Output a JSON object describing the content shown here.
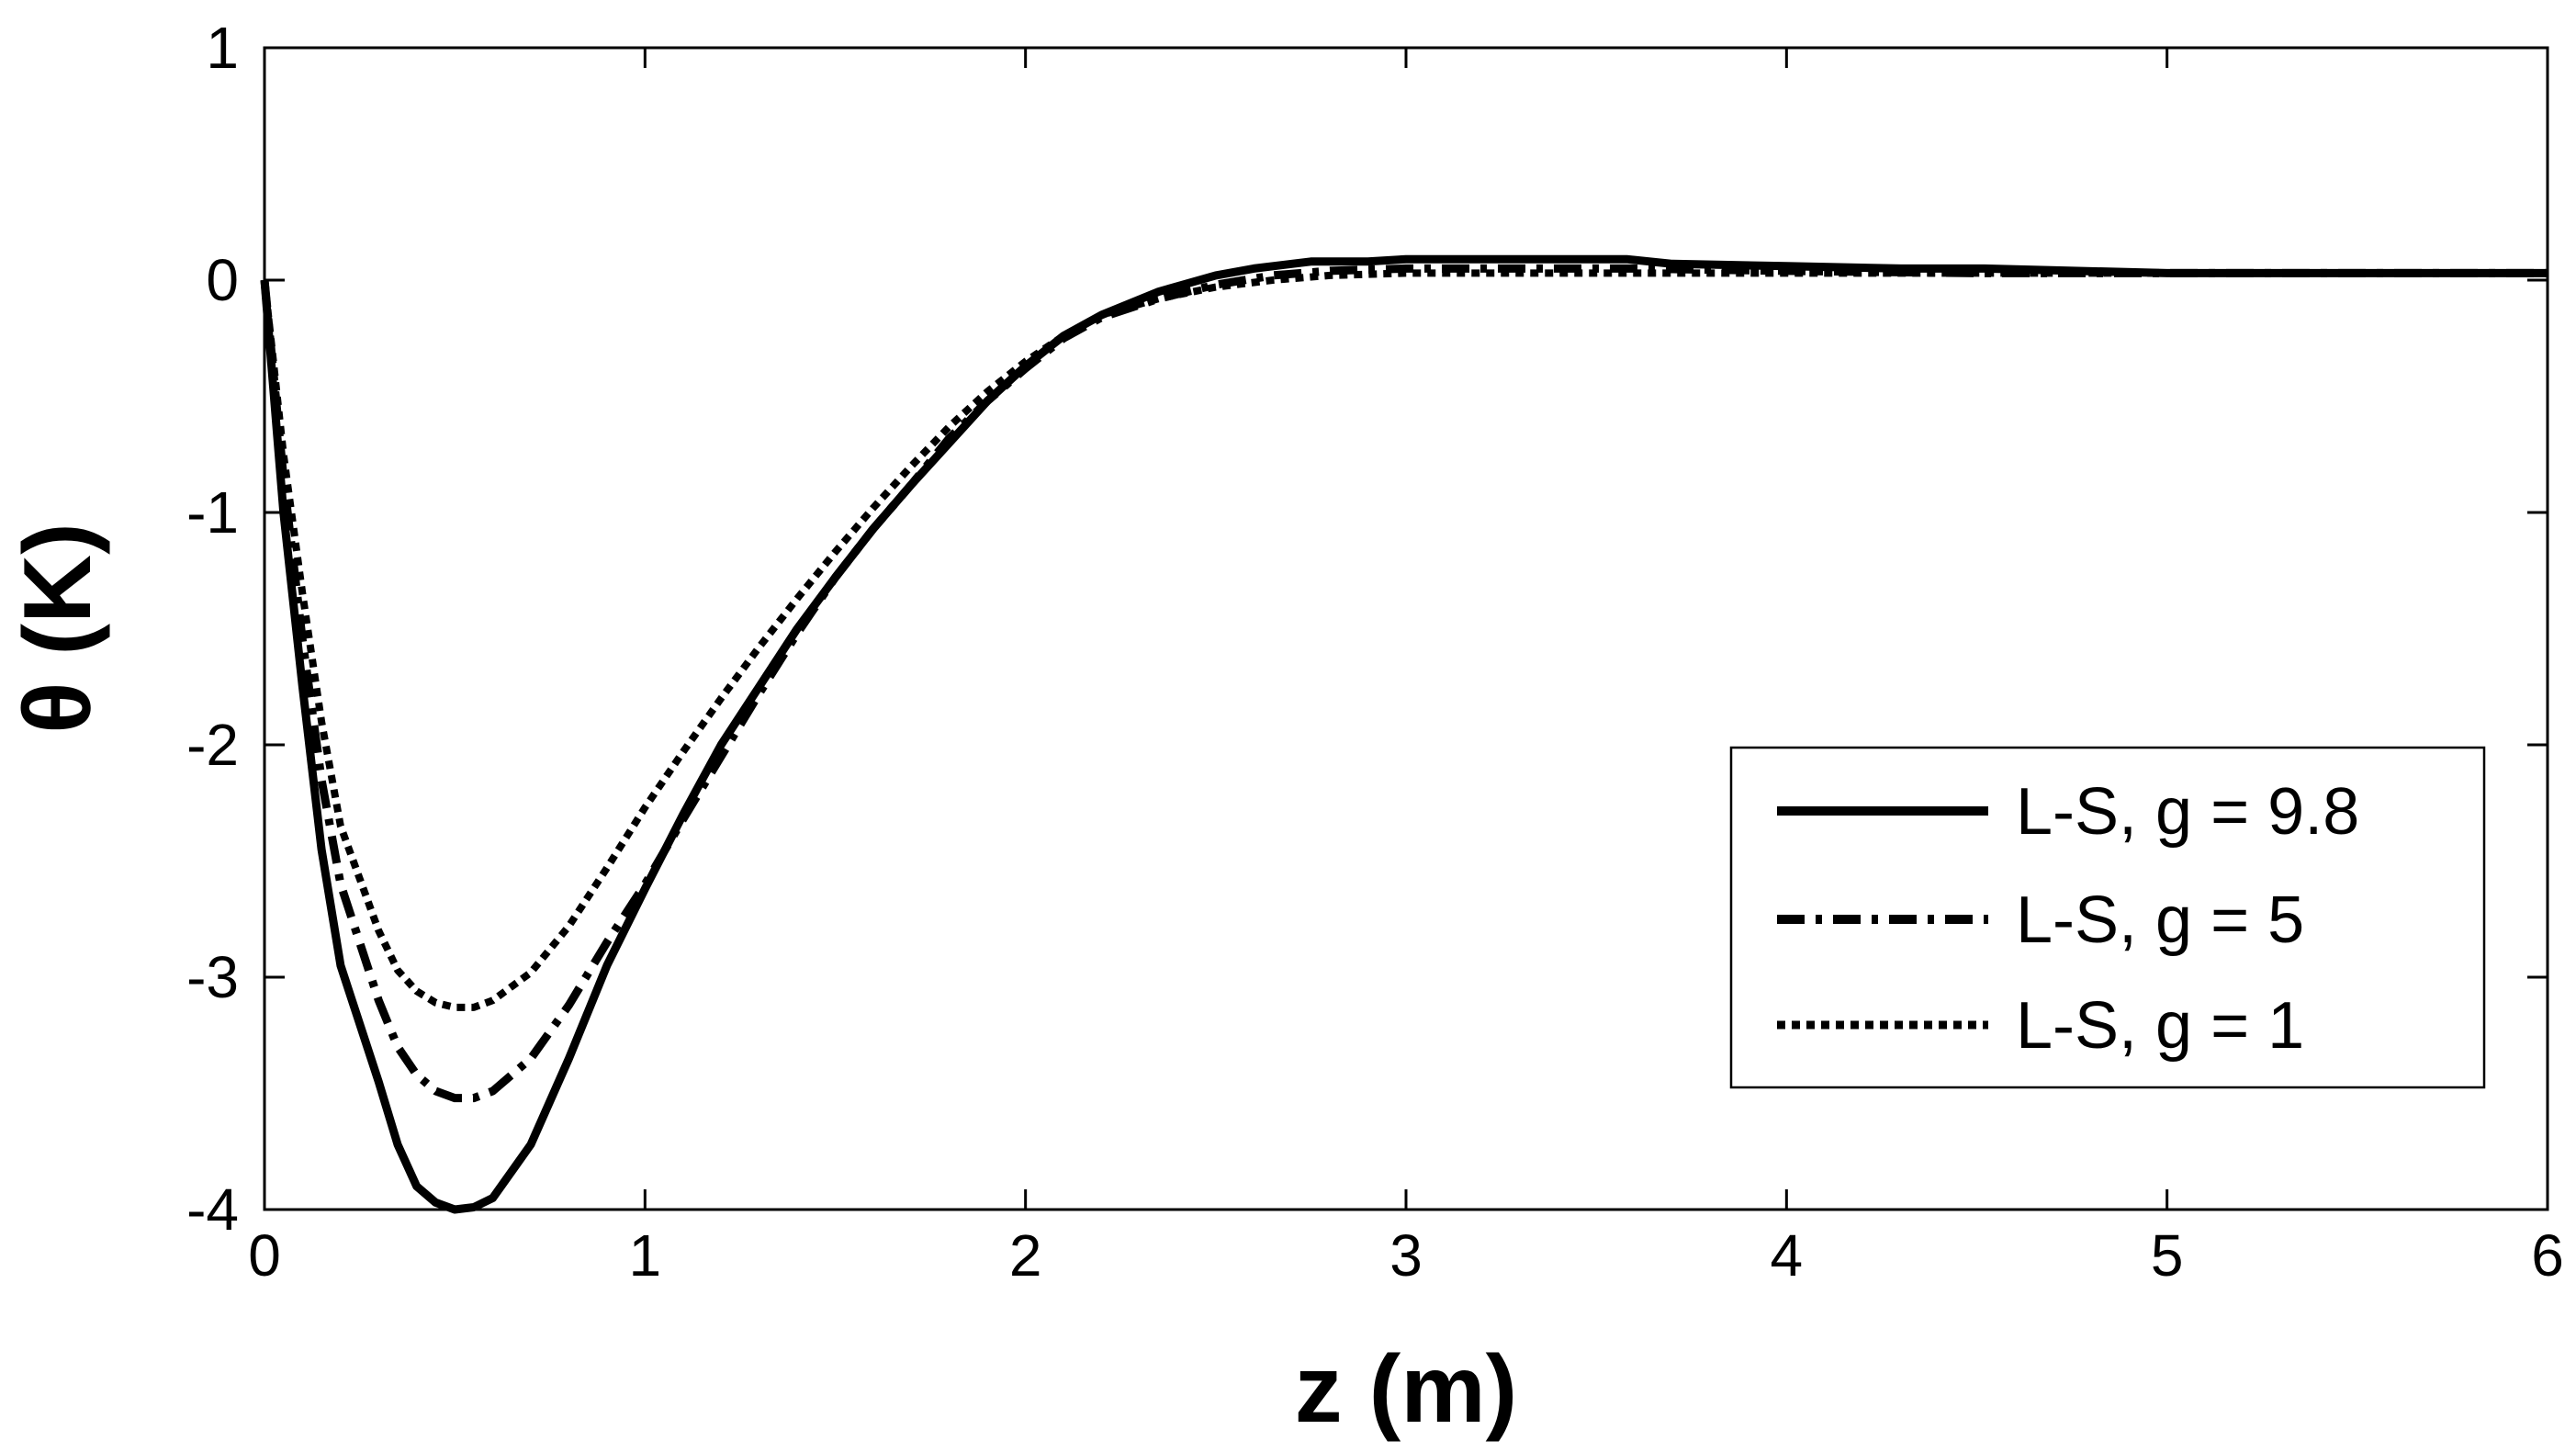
{
  "chart_data": {
    "type": "line",
    "title": "",
    "xlabel": "z (m)",
    "ylabel": "θ (K)",
    "xlim": [
      0,
      6
    ],
    "ylim": [
      -4,
      1
    ],
    "xticks": [
      "0",
      "1",
      "2",
      "3",
      "4",
      "5",
      "6"
    ],
    "yticks": [
      "-4",
      "-3",
      "-2",
      "-1",
      "0",
      "1"
    ],
    "grid": false,
    "legend_position": "center-right",
    "series": [
      {
        "name": "L-S, g = 9.8",
        "style": "solid",
        "x": [
          0,
          0.05,
          0.1,
          0.15,
          0.2,
          0.3,
          0.35,
          0.4,
          0.45,
          0.5,
          0.55,
          0.6,
          0.7,
          0.8,
          0.9,
          1.0,
          1.1,
          1.2,
          1.3,
          1.4,
          1.5,
          1.6,
          1.7,
          1.8,
          1.9,
          2.0,
          2.1,
          2.2,
          2.35,
          2.5,
          2.6,
          2.7,
          2.75,
          2.9,
          3.0,
          3.2,
          3.4,
          3.58,
          3.7,
          4.0,
          4.3,
          4.52,
          5.0,
          5.5,
          6.0
        ],
        "y": [
          0,
          -1.0,
          -1.75,
          -2.45,
          -2.95,
          -3.45,
          -3.72,
          -3.9,
          -3.97,
          -4.0,
          -3.99,
          -3.95,
          -3.72,
          -3.35,
          -2.95,
          -2.62,
          -2.3,
          -2.0,
          -1.75,
          -1.5,
          -1.28,
          -1.07,
          -0.88,
          -0.7,
          -0.52,
          -0.37,
          -0.24,
          -0.15,
          -0.05,
          0.02,
          0.05,
          0.07,
          0.08,
          0.08,
          0.09,
          0.09,
          0.09,
          0.09,
          0.07,
          0.06,
          0.05,
          0.05,
          0.03,
          0.03,
          0.03
        ]
      },
      {
        "name": "L-S, g = 5",
        "style": "dashdot",
        "x": [
          0,
          0.05,
          0.1,
          0.15,
          0.2,
          0.3,
          0.35,
          0.4,
          0.45,
          0.5,
          0.55,
          0.6,
          0.7,
          0.8,
          0.9,
          1.0,
          1.1,
          1.2,
          1.3,
          1.4,
          1.5,
          1.6,
          1.7,
          1.8,
          1.9,
          2.0,
          2.1,
          2.2,
          2.35,
          2.5,
          2.65,
          2.8,
          3.0,
          3.3,
          3.6,
          4.0,
          4.5,
          5.0,
          6.0
        ],
        "y": [
          0,
          -0.85,
          -1.55,
          -2.15,
          -2.6,
          -3.1,
          -3.3,
          -3.42,
          -3.49,
          -3.52,
          -3.52,
          -3.49,
          -3.35,
          -3.12,
          -2.85,
          -2.6,
          -2.32,
          -2.05,
          -1.78,
          -1.52,
          -1.28,
          -1.07,
          -0.88,
          -0.68,
          -0.52,
          -0.38,
          -0.25,
          -0.16,
          -0.08,
          -0.02,
          0.02,
          0.04,
          0.05,
          0.05,
          0.05,
          0.04,
          0.03,
          0.03,
          0.03
        ]
      },
      {
        "name": "L-S, g = 1",
        "style": "dotted",
        "x": [
          0,
          0.05,
          0.1,
          0.15,
          0.2,
          0.3,
          0.35,
          0.4,
          0.45,
          0.5,
          0.55,
          0.6,
          0.7,
          0.8,
          0.9,
          1.0,
          1.1,
          1.2,
          1.3,
          1.4,
          1.5,
          1.6,
          1.7,
          1.8,
          1.9,
          2.0,
          2.1,
          2.2,
          2.35,
          2.5,
          2.65,
          2.8,
          3.0,
          3.3,
          3.6,
          4.0,
          4.5,
          5.0,
          6.0
        ],
        "y": [
          0,
          -0.75,
          -1.35,
          -1.9,
          -2.35,
          -2.8,
          -2.97,
          -3.06,
          -3.11,
          -3.13,
          -3.13,
          -3.1,
          -2.98,
          -2.78,
          -2.53,
          -2.27,
          -2.03,
          -1.8,
          -1.58,
          -1.37,
          -1.17,
          -0.98,
          -0.8,
          -0.63,
          -0.48,
          -0.35,
          -0.24,
          -0.15,
          -0.08,
          -0.03,
          0.0,
          0.02,
          0.03,
          0.03,
          0.03,
          0.03,
          0.03,
          0.03,
          0.03
        ]
      }
    ]
  }
}
